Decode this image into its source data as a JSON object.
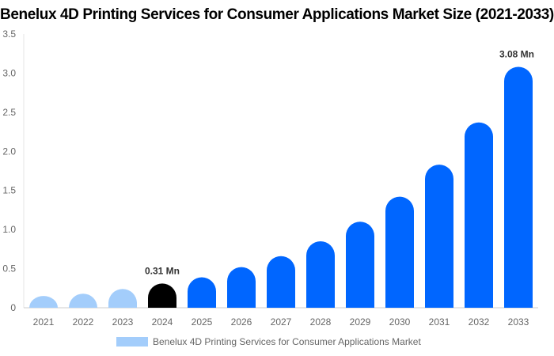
{
  "chart_data": {
    "type": "bar",
    "title": "Benelux 4D Printing Services for Consumer Applications Market Size (2021-2033)",
    "categories": [
      "2021",
      "2022",
      "2023",
      "2024",
      "2025",
      "2026",
      "2027",
      "2028",
      "2029",
      "2030",
      "2031",
      "2032",
      "2033"
    ],
    "series": [
      {
        "name": "Benelux 4D Printing Services for Consumer Applications Market",
        "values": [
          0.15,
          0.18,
          0.24,
          0.31,
          0.39,
          0.52,
          0.66,
          0.85,
          1.1,
          1.42,
          1.83,
          2.37,
          3.08
        ]
      }
    ],
    "ylim": [
      0,
      3.5
    ],
    "yticks": [
      "0",
      "0.5",
      "1.0",
      "1.5",
      "2.0",
      "2.5",
      "3.0",
      "3.5"
    ],
    "annotations": [
      {
        "category": "2024",
        "label": "0.31 Mn"
      },
      {
        "category": "2033",
        "label": "3.08 Mn"
      }
    ],
    "colors": {
      "historical": "#a3cdfb",
      "base_year": "#000000",
      "forecast": "#0066ff"
    },
    "grid": false,
    "legend": "bottom"
  }
}
